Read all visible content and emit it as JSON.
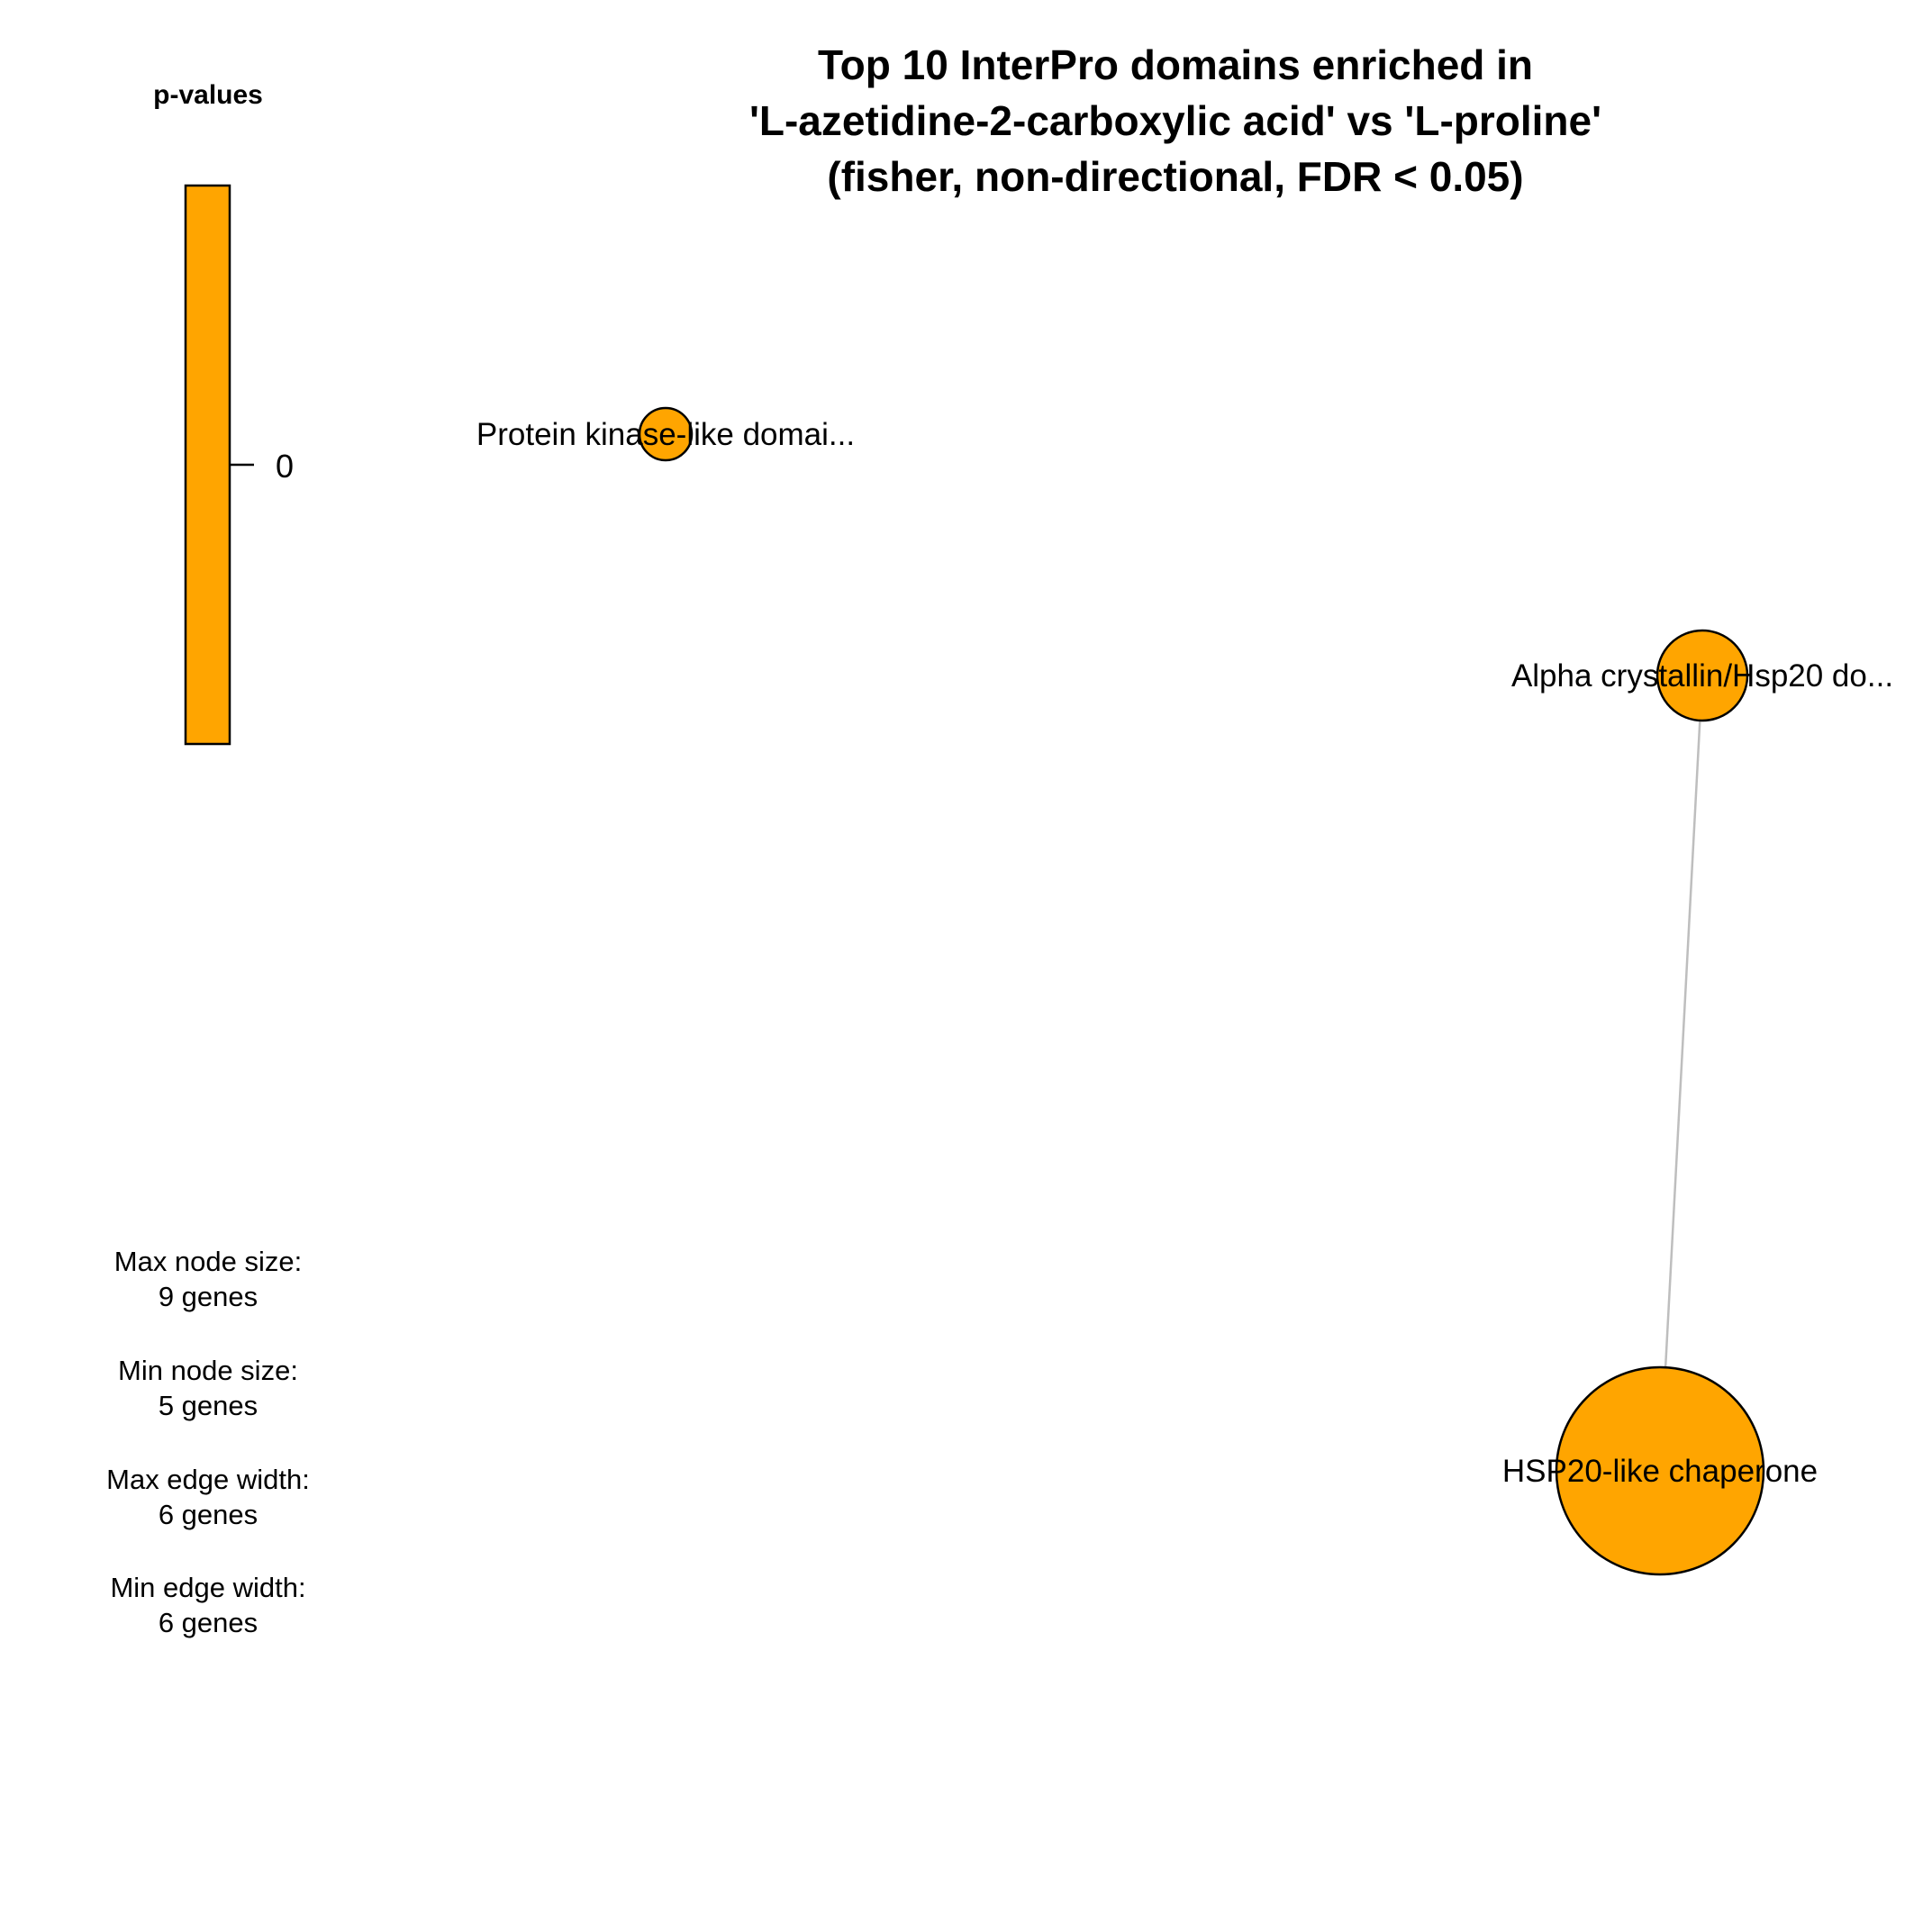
{
  "title": {
    "lines": [
      "Top 10 InterPro domains enriched in",
      "'L-azetidine-2-carboxylic acid' vs 'L-proline'",
      "(fisher, non-directional, FDR < 0.05)"
    ]
  },
  "colorbar": {
    "title": "p-values",
    "tick_label": "0",
    "fill_color": "#FFA500",
    "border_color": "#000000"
  },
  "network": {
    "node_color": "#FFA500",
    "edge_color": "#BEBEBE",
    "nodes": [
      {
        "id": "kinase",
        "label": "Protein kinase-like domai..."
      },
      {
        "id": "alpha",
        "label": "Alpha crystallin/Hsp20 do..."
      },
      {
        "id": "hsp20",
        "label": "HSP20-like chaperone"
      }
    ],
    "edges": [
      {
        "source": "alpha",
        "target": "hsp20"
      }
    ]
  },
  "size_info": [
    {
      "heading": "Max node size:",
      "value": "9 genes"
    },
    {
      "heading": "Min node size:",
      "value": "5 genes"
    },
    {
      "heading": "Max edge width:",
      "value": "6 genes"
    },
    {
      "heading": "Min edge width:",
      "value": "6 genes"
    }
  ]
}
